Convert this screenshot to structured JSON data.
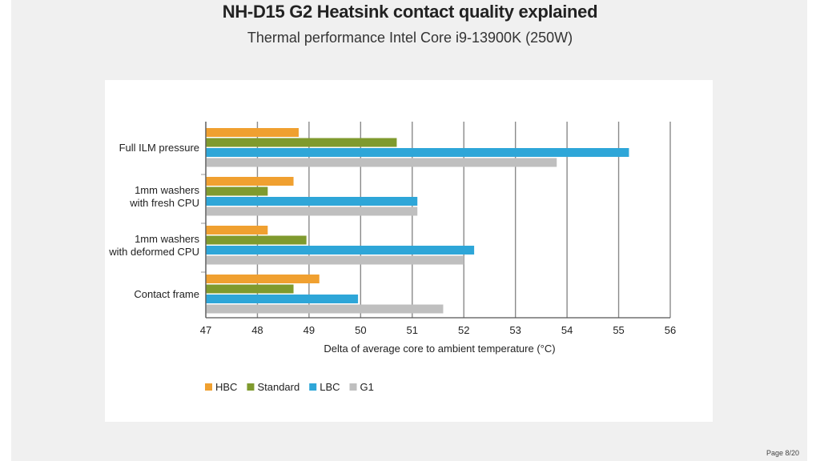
{
  "title": "NH-D15 G2 Heatsink contact quality explained",
  "subtitle": "Thermal performance Intel Core i9-13900K (250W)",
  "page": "Page 8/20",
  "chart_data": {
    "type": "bar",
    "orientation": "horizontal",
    "categories": [
      [
        "Full ILM pressure"
      ],
      [
        "1mm washers",
        "with fresh CPU"
      ],
      [
        "1mm washers",
        "with deformed CPU"
      ],
      [
        "Contact frame"
      ]
    ],
    "series": [
      {
        "name": "HBC",
        "color": "#f0a030",
        "values": [
          48.8,
          48.7,
          48.2,
          49.2
        ]
      },
      {
        "name": "Standard",
        "color": "#7f9a2e",
        "values": [
          50.7,
          48.2,
          48.95,
          48.7
        ]
      },
      {
        "name": "LBC",
        "color": "#2ea6d8",
        "values": [
          55.2,
          51.1,
          52.2,
          49.95
        ]
      },
      {
        "name": "G1",
        "color": "#bfbfbf",
        "values": [
          53.8,
          51.1,
          52.0,
          51.6
        ]
      }
    ],
    "xlabel": "Delta of average core to ambient temperature (°C)",
    "ylabel": "",
    "xlim": [
      47,
      56
    ],
    "xticks": [
      "47",
      "48",
      "49",
      "50",
      "51",
      "52",
      "53",
      "54",
      "55",
      "56"
    ],
    "grid": true,
    "legend_position": "bottom-left"
  }
}
